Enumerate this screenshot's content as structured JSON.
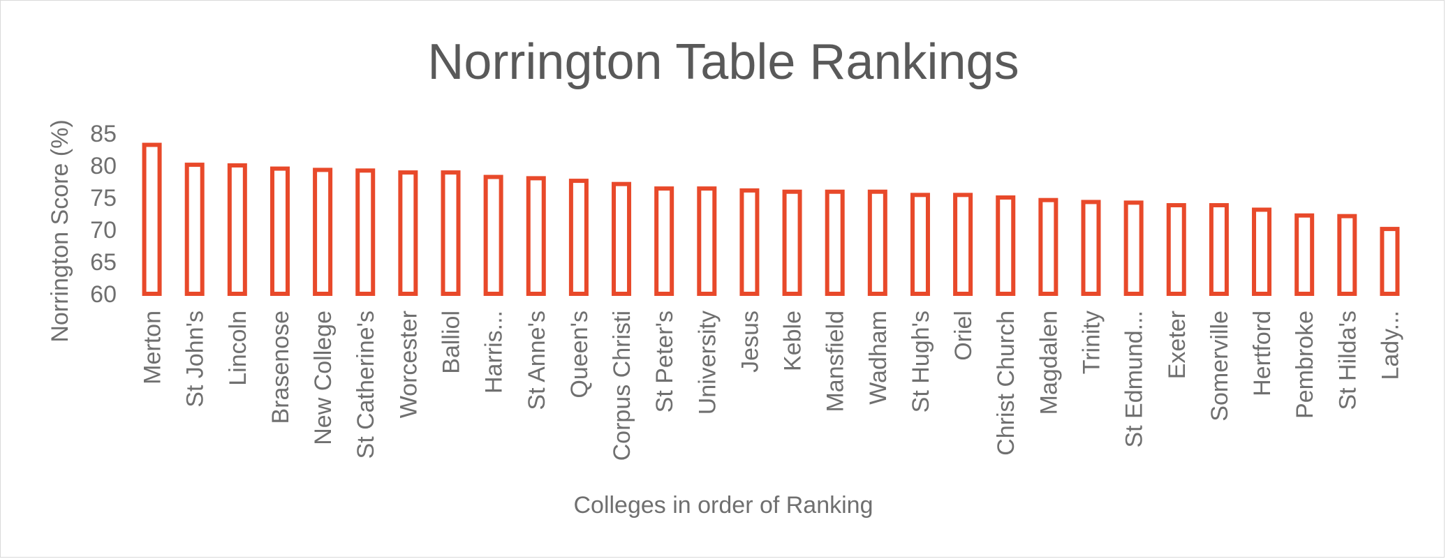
{
  "chart_data": {
    "type": "bar",
    "title": "Norrington Table Rankings",
    "xlabel": "Colleges in order of Ranking",
    "ylabel": "Norrington Score (%)",
    "ylim": [
      60,
      85
    ],
    "yticks": [
      60,
      65,
      70,
      75,
      80,
      85
    ],
    "categories": [
      "Merton",
      "St John's",
      "Lincoln",
      "Brasenose",
      "New College",
      "St Catherine's",
      "Worcester",
      "Balliol",
      "Harris...",
      "St Anne's",
      "Queen's",
      "Corpus Christi",
      "St Peter's",
      "University",
      "Jesus",
      "Keble",
      "Mansfield",
      "Wadham",
      "St Hugh's",
      "Oriel",
      "Christ Church",
      "Magdalen",
      "Trinity",
      "St Edmund...",
      "Exeter",
      "Somerville",
      "Hertford",
      "Pembroke",
      "St Hilda's",
      "Lady..."
    ],
    "values": [
      83.2,
      80.1,
      80.0,
      79.5,
      79.3,
      79.2,
      78.9,
      78.9,
      78.2,
      78.0,
      77.6,
      77.1,
      76.4,
      76.4,
      76.1,
      75.9,
      75.9,
      75.9,
      75.4,
      75.4,
      75.0,
      74.6,
      74.3,
      74.2,
      73.8,
      73.8,
      73.1,
      72.2,
      72.1,
      70.1
    ],
    "grid": false,
    "legend": "none",
    "bar_color": "#e8492a"
  }
}
